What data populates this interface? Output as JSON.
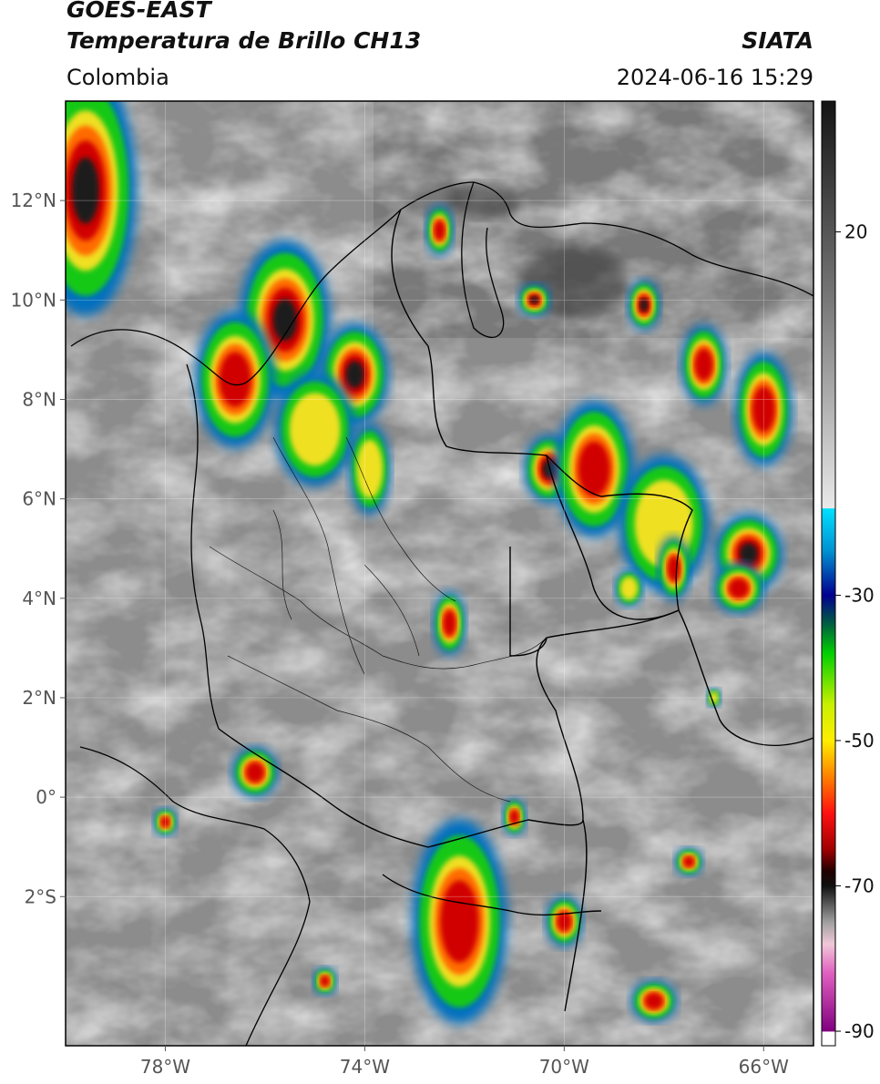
{
  "header": {
    "satellite": "GOES-EAST",
    "product": "Temperatura de Brillo CH13",
    "region": "Colombia",
    "agency": "SIATA",
    "datetime": "2024-06-16 15:29"
  },
  "map_extent": {
    "lon_min": -80.0,
    "lon_max": -65.0,
    "lat_min": -5.0,
    "lat_max": 14.0
  },
  "axes": {
    "lat_ticks": [
      {
        "lat": 12,
        "label": "12°N"
      },
      {
        "lat": 10,
        "label": "10°N"
      },
      {
        "lat": 8,
        "label": "8°N"
      },
      {
        "lat": 6,
        "label": "6°N"
      },
      {
        "lat": 4,
        "label": "4°N"
      },
      {
        "lat": 2,
        "label": "2°N"
      },
      {
        "lat": 0,
        "label": "0°"
      },
      {
        "lat": -2,
        "label": "2°S"
      }
    ],
    "lon_ticks": [
      {
        "lon": -78,
        "label": "78°W"
      },
      {
        "lon": -74,
        "label": "74°W"
      },
      {
        "lon": -70,
        "label": "70°W"
      },
      {
        "lon": -66,
        "label": "66°W"
      }
    ]
  },
  "colorbar": {
    "vmin": -92,
    "vmax": 38,
    "ticks": [
      {
        "value": 20,
        "label": "20"
      },
      {
        "value": -30,
        "label": "-30"
      },
      {
        "value": -50,
        "label": "-50"
      },
      {
        "value": -70,
        "label": "-70"
      },
      {
        "value": -90,
        "label": "-90"
      }
    ],
    "stops": [
      {
        "value": 38,
        "color": "#141414"
      },
      {
        "value": 10,
        "color": "#7a7a7a"
      },
      {
        "value": -18,
        "color": "#e9e9e9"
      },
      {
        "value": -18.1,
        "color": "#00e0ff"
      },
      {
        "value": -24,
        "color": "#0090d0"
      },
      {
        "value": -30,
        "color": "#000090"
      },
      {
        "value": -34,
        "color": "#006040"
      },
      {
        "value": -38,
        "color": "#00d000"
      },
      {
        "value": -45,
        "color": "#c8f000"
      },
      {
        "value": -50,
        "color": "#ffee00"
      },
      {
        "value": -55,
        "color": "#ff8000"
      },
      {
        "value": -60,
        "color": "#ff1010"
      },
      {
        "value": -65,
        "color": "#a00000"
      },
      {
        "value": -68,
        "color": "#200000"
      },
      {
        "value": -70,
        "color": "#101010"
      },
      {
        "value": -75,
        "color": "#a0a0a0"
      },
      {
        "value": -78,
        "color": "#f0c8d8"
      },
      {
        "value": -82,
        "color": "#e060c0"
      },
      {
        "value": -90,
        "color": "#800080"
      },
      {
        "value": -90.1,
        "color": "#ffffff"
      },
      {
        "value": -92,
        "color": "#ffffff"
      }
    ]
  }
}
